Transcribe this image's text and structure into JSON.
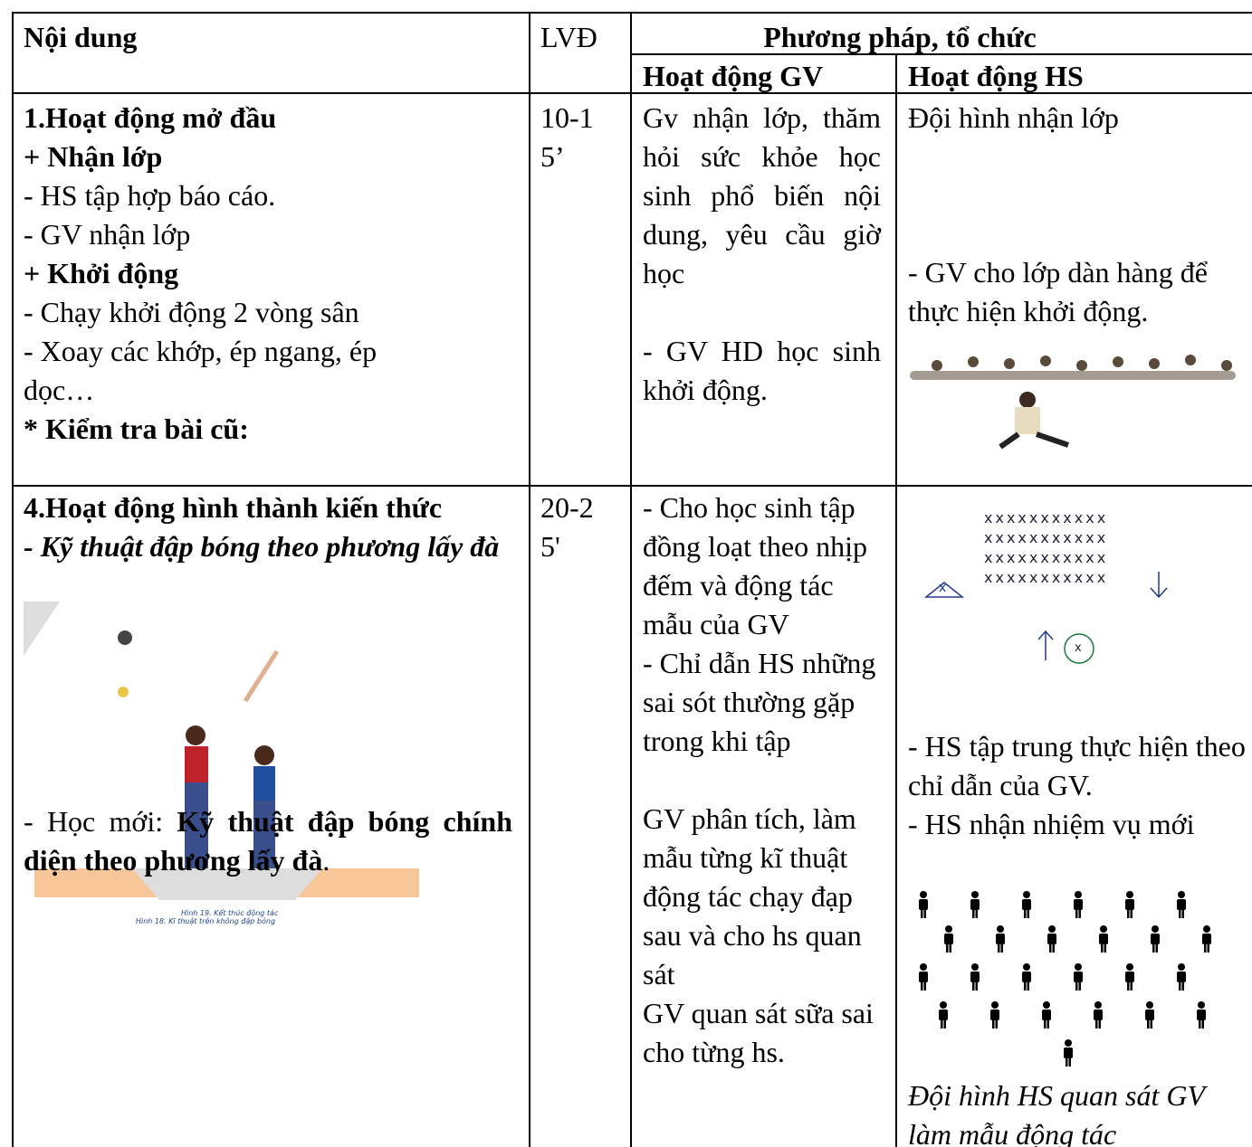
{
  "header": {
    "content": "Nội dung",
    "duration": "LVĐ",
    "method": "Phương pháp, tổ chức",
    "teacher": "Hoạt động GV",
    "student": "Hoạt động HS"
  },
  "rows": [
    {
      "content": {
        "title": "1.Hoạt động mở đầu",
        "items": [
          "+ Nhận lớp",
          "- HS tập hợp báo cáo.",
          "- GV nhận lớp",
          "+ Khởi động",
          "- Chạy khởi động 2 vòng sân",
          "- Xoay các khớp, ép ngang, ép dọc…",
          "* Kiểm tra bài cũ:"
        ]
      },
      "duration": "10-15’",
      "teacher": [
        "Gv nhận lớp, thăm hỏi sức khỏe học sinh phổ biến nội dung, yêu cầu giờ học",
        "- GV HD học sinh khởi động."
      ],
      "student": [
        "Đội hình nhận lớp",
        "- GV cho lớp dàn hàng để thực hiện khởi động."
      ]
    },
    {
      "content": {
        "title": "4.Hoạt động hình thành kiến thức",
        "subtitle": "- Kỹ thuật đập bóng theo phương lấy đà",
        "image_captions": [
          "Hình 19. Kết thúc động tác",
          "Hình 18. Kĩ thuật trên không đập bóng"
        ],
        "new_lesson_prefix": "- Học mới: ",
        "new_lesson": "Kỹ thuật đập bóng chính diện theo phương lấy đà",
        "new_lesson_suffix": "."
      },
      "duration": "20-25'",
      "teacher": [
        "- Cho học sinh tập đồng loạt theo nhịp đếm và động tác mẫu của GV",
        "- Chỉ dẫn HS những sai sót thường gặp trong khi tập",
        "GV phân tích, làm mẫu từng kĩ thuật động tác chạy đạp sau và cho hs quan sát",
        "GV quan sát sữa sai cho từng hs."
      ],
      "student": {
        "formation_rows": [
          "xxxxxxxxxxx",
          "xxxxxxxxxxx",
          "xxxxxxxxxxx",
          "xxxxxxxxxxx"
        ],
        "teacher_mark": "x",
        "student_mark": "x",
        "notes": [
          "- HS tập trung thực hiện theo chỉ dẫn của GV.",
          "- HS nhận nhiệm vụ mới"
        ],
        "caption": "Đội hình HS quan sát GV làm mẫu động tác"
      }
    }
  ]
}
